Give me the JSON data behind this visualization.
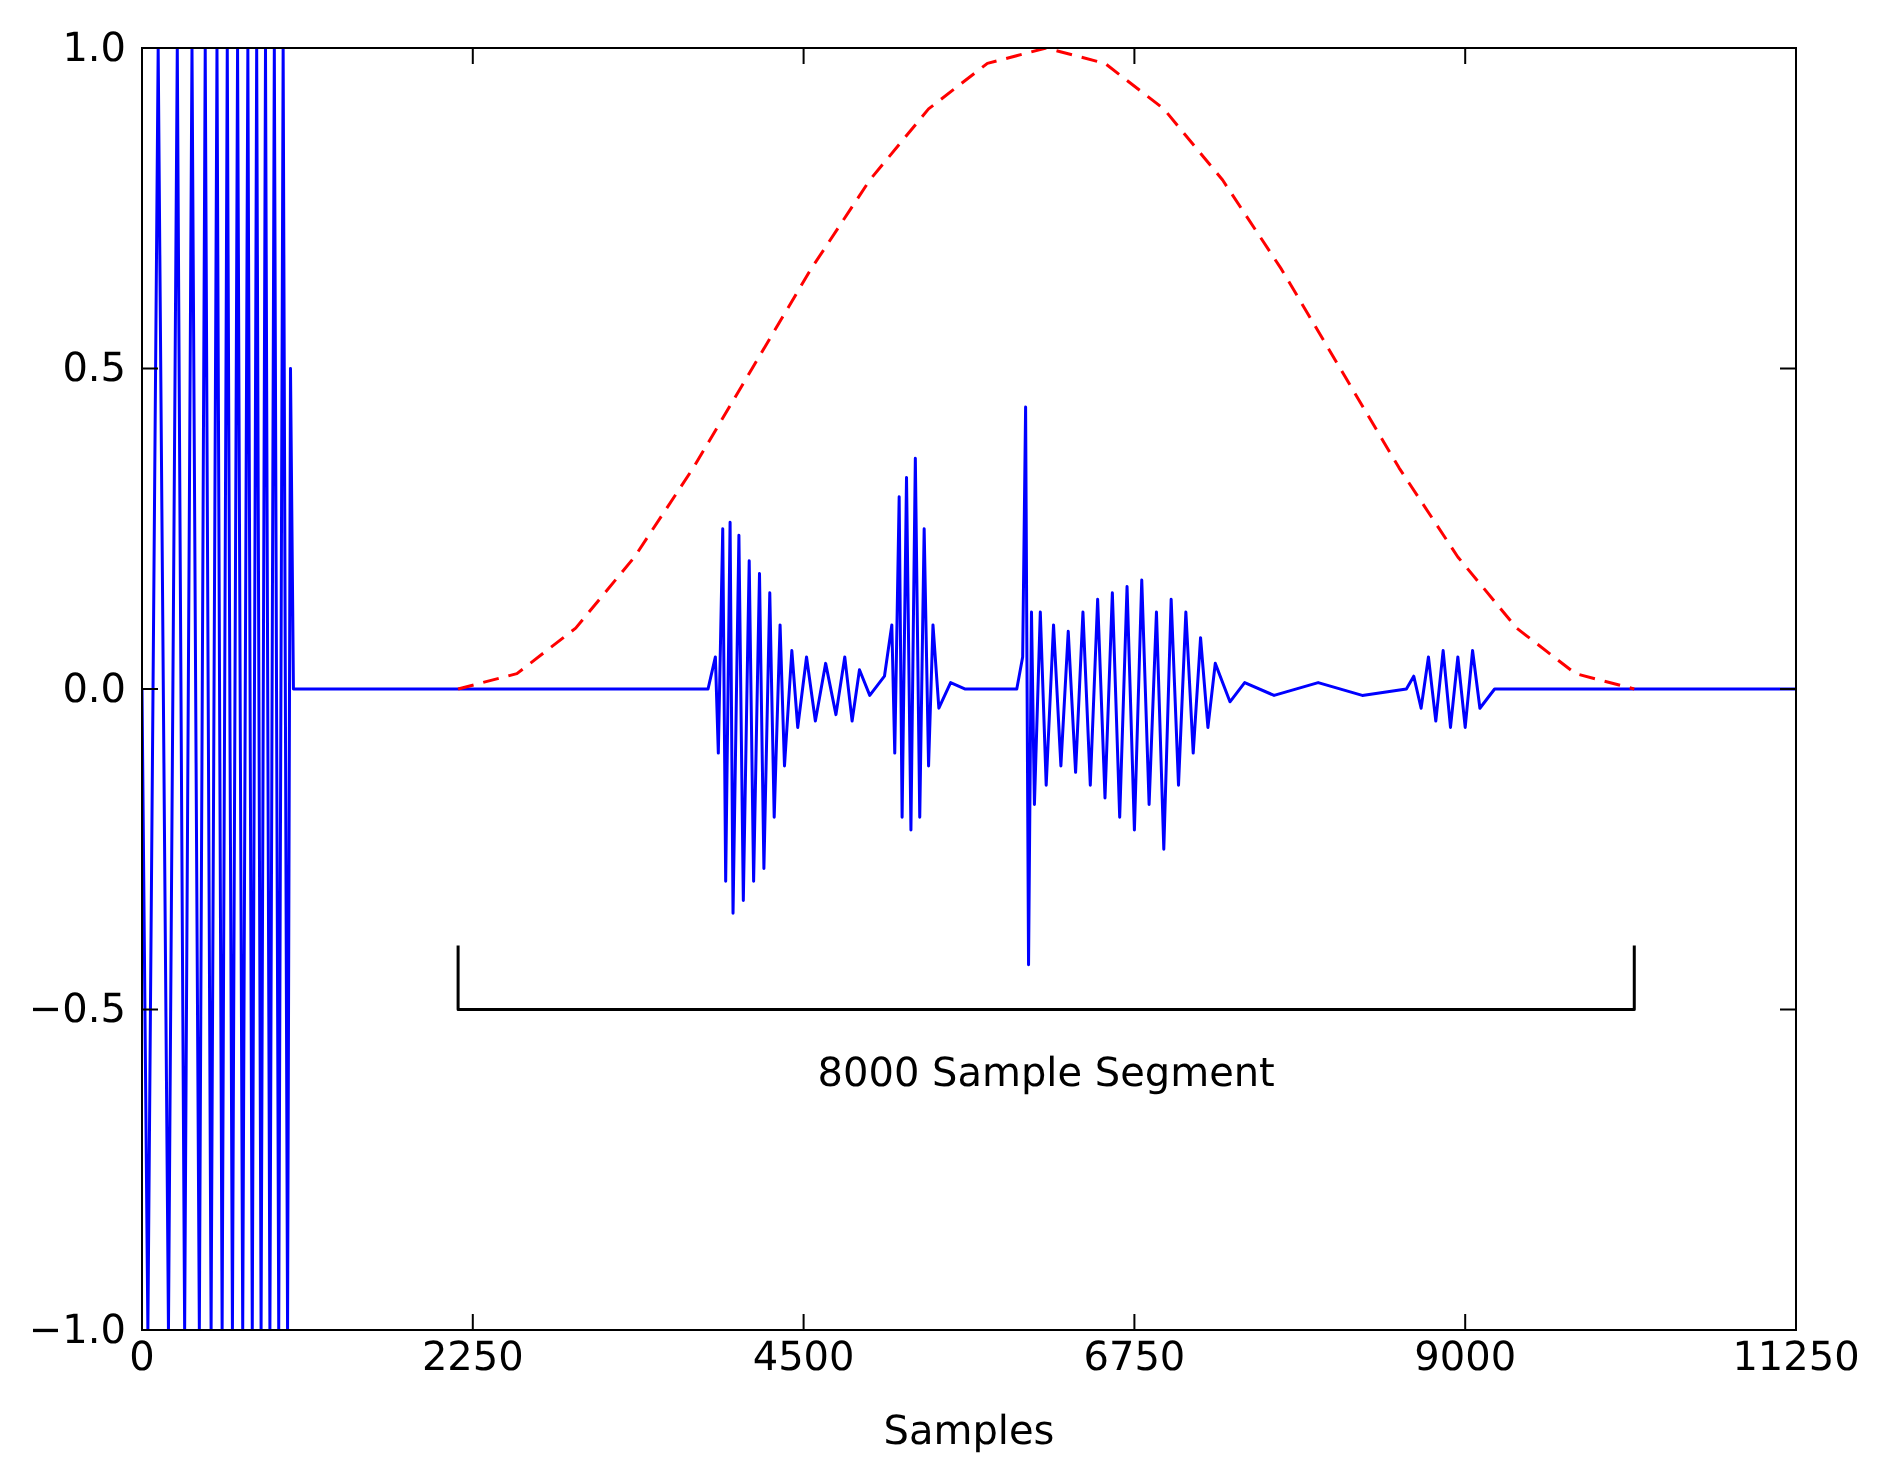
{
  "chart_data": {
    "type": "line",
    "xlabel": "Samples",
    "xlim": [
      0,
      11250
    ],
    "ylim": [
      -1,
      1
    ],
    "xticks": [
      0,
      2250,
      4500,
      6750,
      9000,
      11250
    ],
    "yticks": [
      {
        "value": -1,
        "label": "−1.0"
      },
      {
        "value": -0.5,
        "label": "−0.5"
      },
      {
        "value": 0,
        "label": "0.0"
      },
      {
        "value": 0.5,
        "label": "0.5"
      },
      {
        "value": 1,
        "label": "1.0"
      }
    ],
    "annotations": [
      "8000 Sample Segment"
    ],
    "series": [
      {
        "color": "#0000ff",
        "line_style": "solid",
        "x": [
          0,
          40,
          110,
          180,
          240,
          290,
          340,
          390,
          430,
          470,
          510,
          545,
          580,
          615,
          650,
          685,
          720,
          750,
          780,
          810,
          840,
          870,
          900,
          930,
          960,
          990,
          1010,
          1030,
          2300,
          3850,
          3900,
          3920,
          3950,
          3970,
          4000,
          4020,
          4060,
          4090,
          4130,
          4160,
          4200,
          4230,
          4270,
          4300,
          4340,
          4370,
          4420,
          4460,
          4520,
          4580,
          4650,
          4720,
          4780,
          4830,
          4880,
          4950,
          5050,
          5100,
          5120,
          5150,
          5170,
          5200,
          5230,
          5260,
          5290,
          5320,
          5350,
          5380,
          5420,
          5500,
          5600,
          5950,
          5990,
          6010,
          6030,
          6050,
          6070,
          6110,
          6150,
          6200,
          6250,
          6300,
          6350,
          6400,
          6450,
          6500,
          6550,
          6600,
          6650,
          6700,
          6750,
          6800,
          6850,
          6900,
          6950,
          7000,
          7050,
          7100,
          7150,
          7200,
          7250,
          7300,
          7400,
          7500,
          7700,
          8000,
          8300,
          8600,
          8650,
          8700,
          8750,
          8800,
          8850,
          8900,
          8950,
          9000,
          9050,
          9100,
          9200,
          11250
        ],
        "values": [
          0,
          -1,
          1,
          -1,
          1,
          -1,
          1,
          -1,
          1,
          -1,
          1,
          -1,
          1,
          -1,
          1,
          -1,
          1,
          -1,
          1,
          -1,
          1,
          -1,
          1,
          -1,
          1,
          -1,
          0.5,
          0,
          0,
          0,
          0.05,
          -0.1,
          0.25,
          -0.3,
          0.26,
          -0.35,
          0.24,
          -0.33,
          0.2,
          -0.3,
          0.18,
          -0.28,
          0.15,
          -0.2,
          0.1,
          -0.12,
          0.06,
          -0.06,
          0.05,
          -0.05,
          0.04,
          -0.04,
          0.05,
          -0.05,
          0.03,
          -0.01,
          0.02,
          0.1,
          -0.1,
          0.3,
          -0.2,
          0.33,
          -0.22,
          0.36,
          -0.2,
          0.25,
          -0.12,
          0.1,
          -0.03,
          0.01,
          0,
          0,
          0.05,
          0.44,
          -0.43,
          0.12,
          -0.18,
          0.12,
          -0.15,
          0.1,
          -0.12,
          0.09,
          -0.13,
          0.12,
          -0.15,
          0.14,
          -0.17,
          0.15,
          -0.2,
          0.16,
          -0.22,
          0.17,
          -0.18,
          0.12,
          -0.25,
          0.14,
          -0.15,
          0.12,
          -0.1,
          0.08,
          -0.06,
          0.04,
          -0.02,
          0.01,
          -0.01,
          0.01,
          -0.01,
          0,
          0.02,
          -0.03,
          0.05,
          -0.05,
          0.06,
          -0.06,
          0.05,
          -0.06,
          0.06,
          -0.03,
          0,
          0
        ]
      },
      {
        "color": "#ff0000",
        "line_style": "dashed",
        "x": [
          2150,
          2550,
          2950,
          3350,
          3750,
          4150,
          4550,
          4950,
          5350,
          5750,
          6150,
          6550,
          6950,
          7350,
          7750,
          8150,
          8550,
          8950,
          9350,
          9750,
          10150
        ],
        "values": [
          0,
          0.024,
          0.095,
          0.206,
          0.345,
          0.5,
          0.655,
          0.794,
          0.905,
          0.976,
          1,
          0.976,
          0.905,
          0.794,
          0.655,
          0.5,
          0.345,
          0.206,
          0.095,
          0.024,
          0
        ]
      },
      {
        "color": "#000000",
        "line_style": "solid",
        "x": [
          2150,
          2150,
          10150,
          10150
        ],
        "values": [
          -0.4,
          -0.5,
          -0.5,
          -0.4
        ]
      }
    ]
  }
}
